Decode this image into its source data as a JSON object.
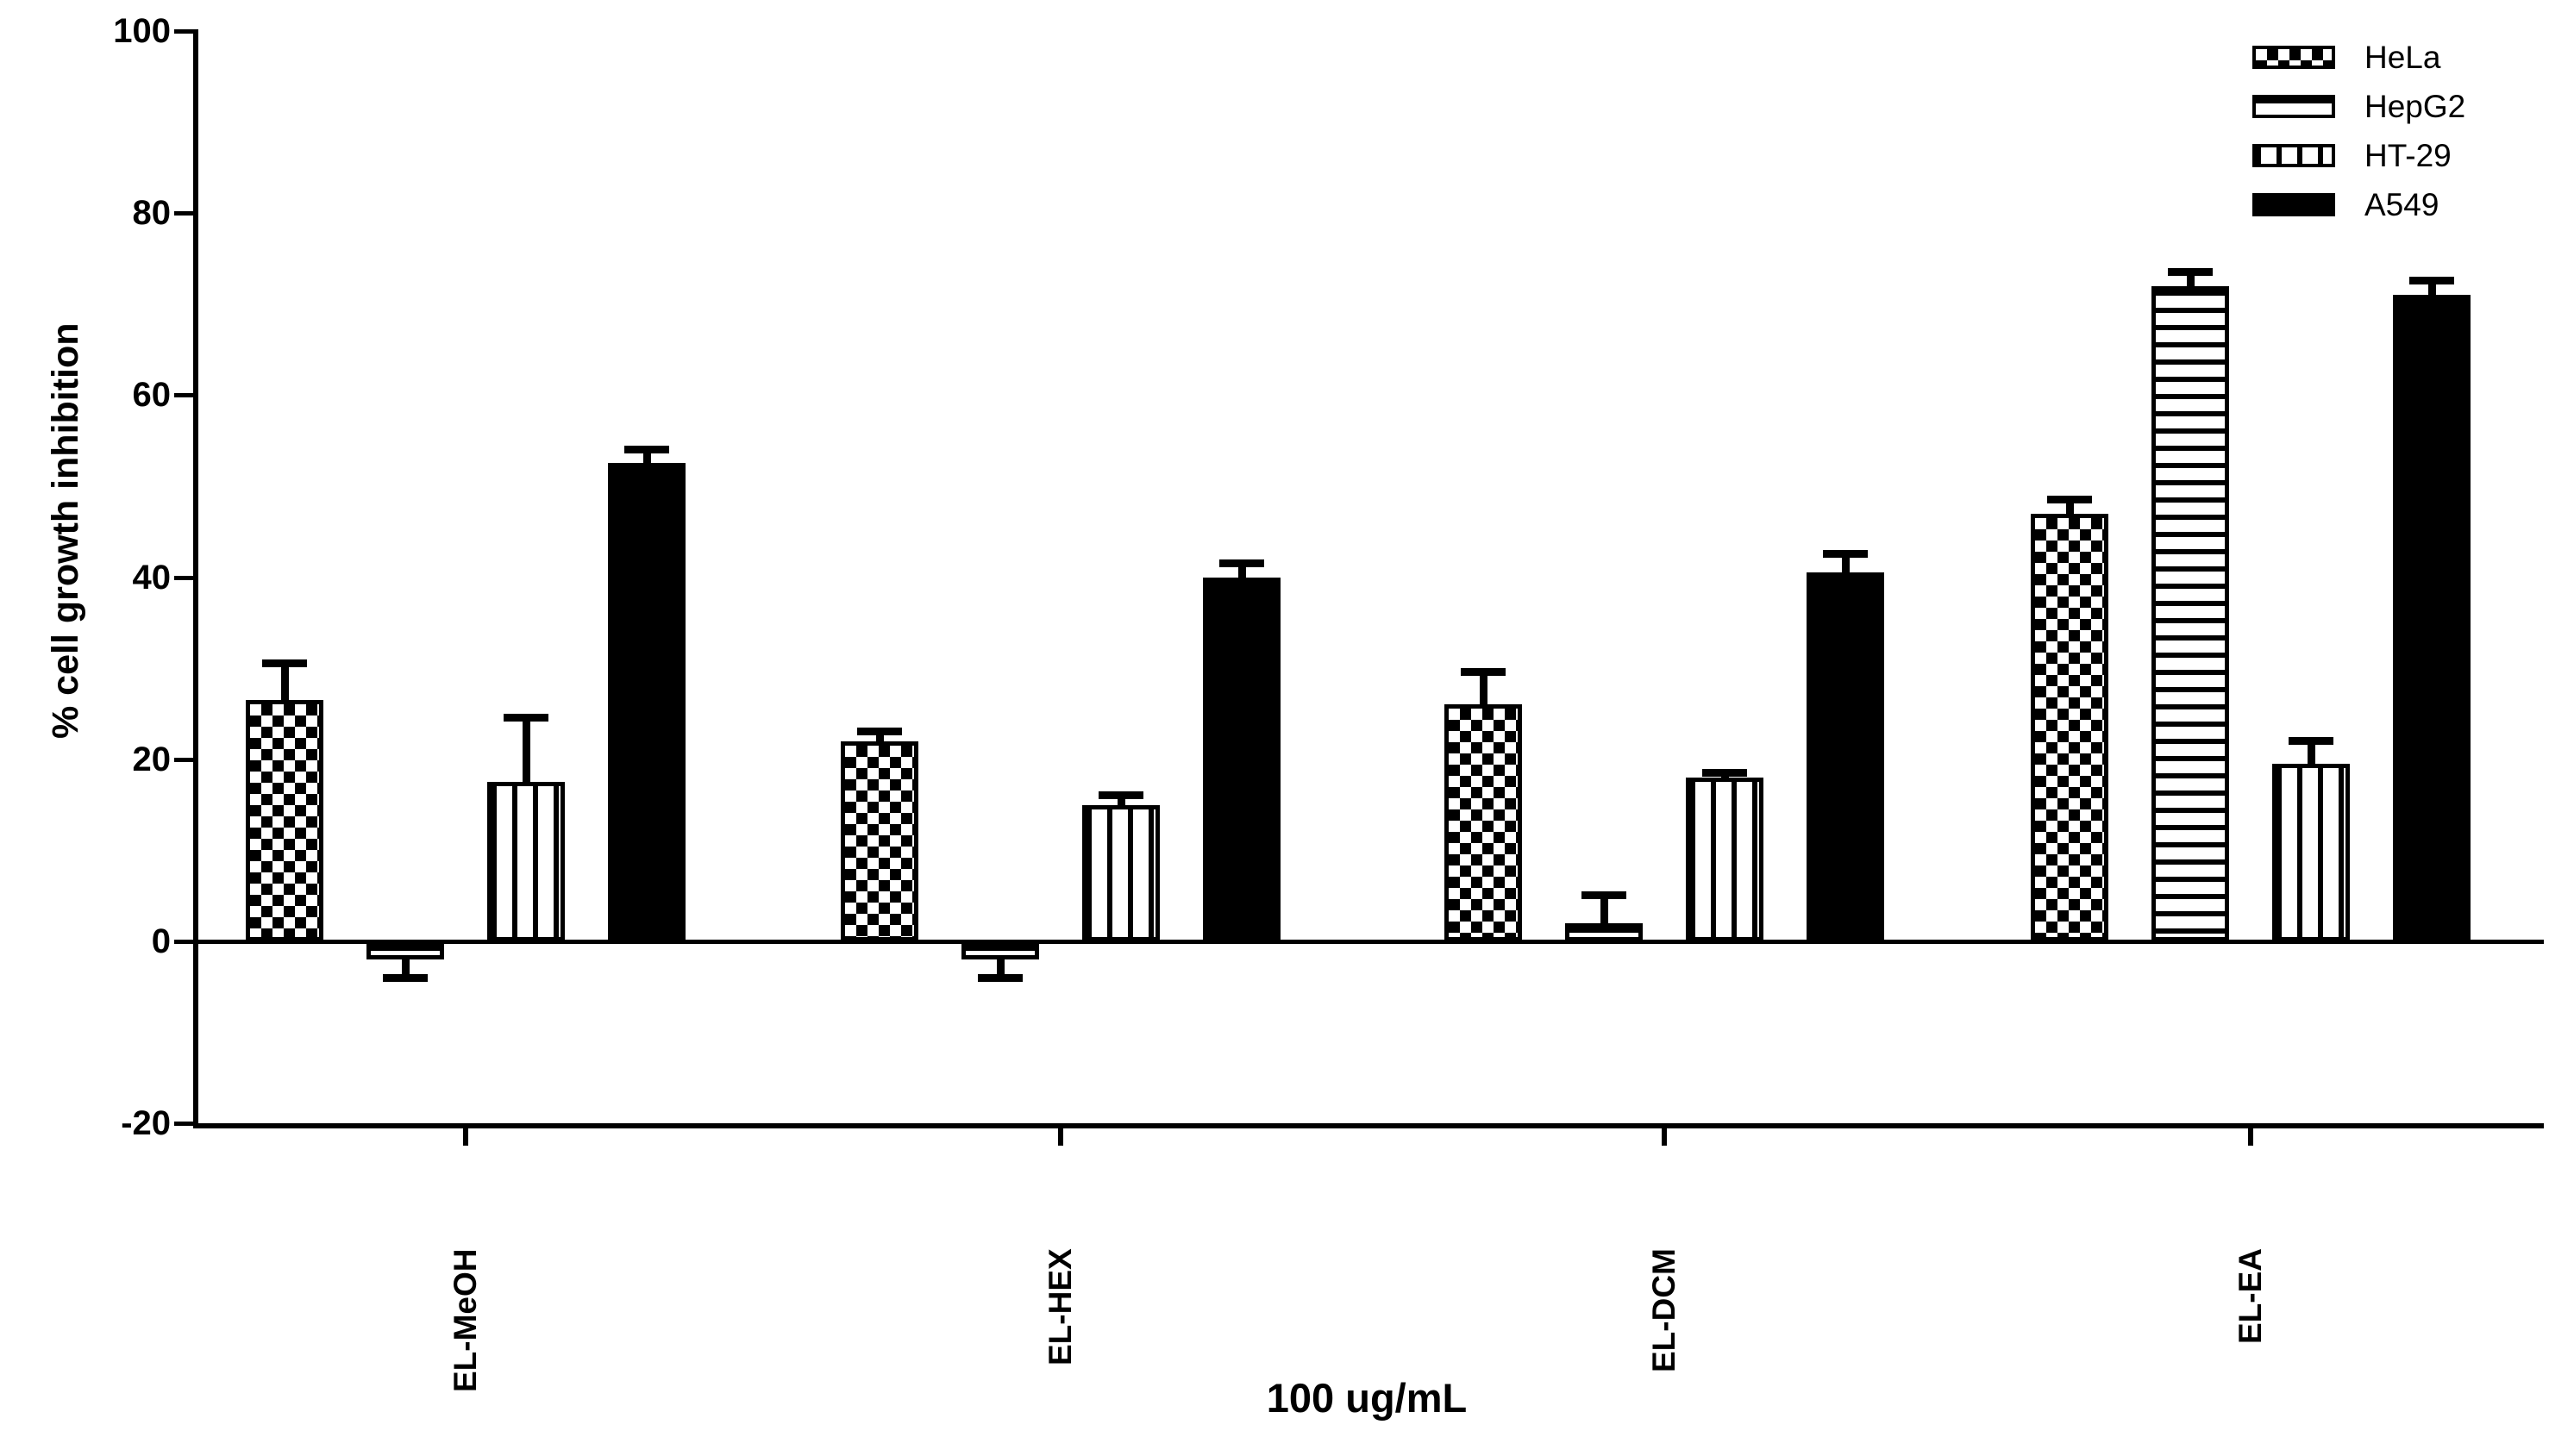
{
  "figure": {
    "background": "#ffffff",
    "foreground": "#000000"
  },
  "chart_data": {
    "type": "bar",
    "title": "",
    "xlabel": "100 ug/mL",
    "ylabel": "% cell growth inhibition",
    "categories": [
      "EL-MeOH",
      "EL-HEX",
      "EL-DCM",
      "EL-EA"
    ],
    "series": [
      {
        "name": "HeLa",
        "pattern": "checker",
        "values": [
          26.5,
          22.0,
          26.0,
          47.0
        ],
        "errors": [
          4.0,
          1.0,
          3.5,
          1.5
        ]
      },
      {
        "name": "HepG2",
        "pattern": "hlines",
        "values": [
          -2.0,
          -2.0,
          2.0,
          72.0
        ],
        "errors": [
          2.0,
          2.0,
          3.0,
          1.5
        ]
      },
      {
        "name": "HT-29",
        "pattern": "vlines",
        "values": [
          17.5,
          15.0,
          18.0,
          19.5
        ],
        "errors": [
          7.0,
          1.0,
          0.5,
          2.5
        ]
      },
      {
        "name": "A549",
        "pattern": "solid",
        "values": [
          52.5,
          40.0,
          40.5,
          71.0
        ],
        "errors": [
          1.5,
          1.5,
          2.0,
          1.5
        ]
      }
    ],
    "y_axis": {
      "min": -20,
      "max": 100,
      "ticks": [
        100,
        80,
        60,
        40,
        20,
        0,
        -20
      ],
      "tick_labels": [
        "100",
        "80",
        "60",
        "40",
        "20",
        "0",
        "-20"
      ]
    },
    "legend": {
      "position": "top-right",
      "entries": [
        "HeLa",
        "HepG2",
        "HT-29",
        "A549"
      ]
    },
    "grid": false
  }
}
